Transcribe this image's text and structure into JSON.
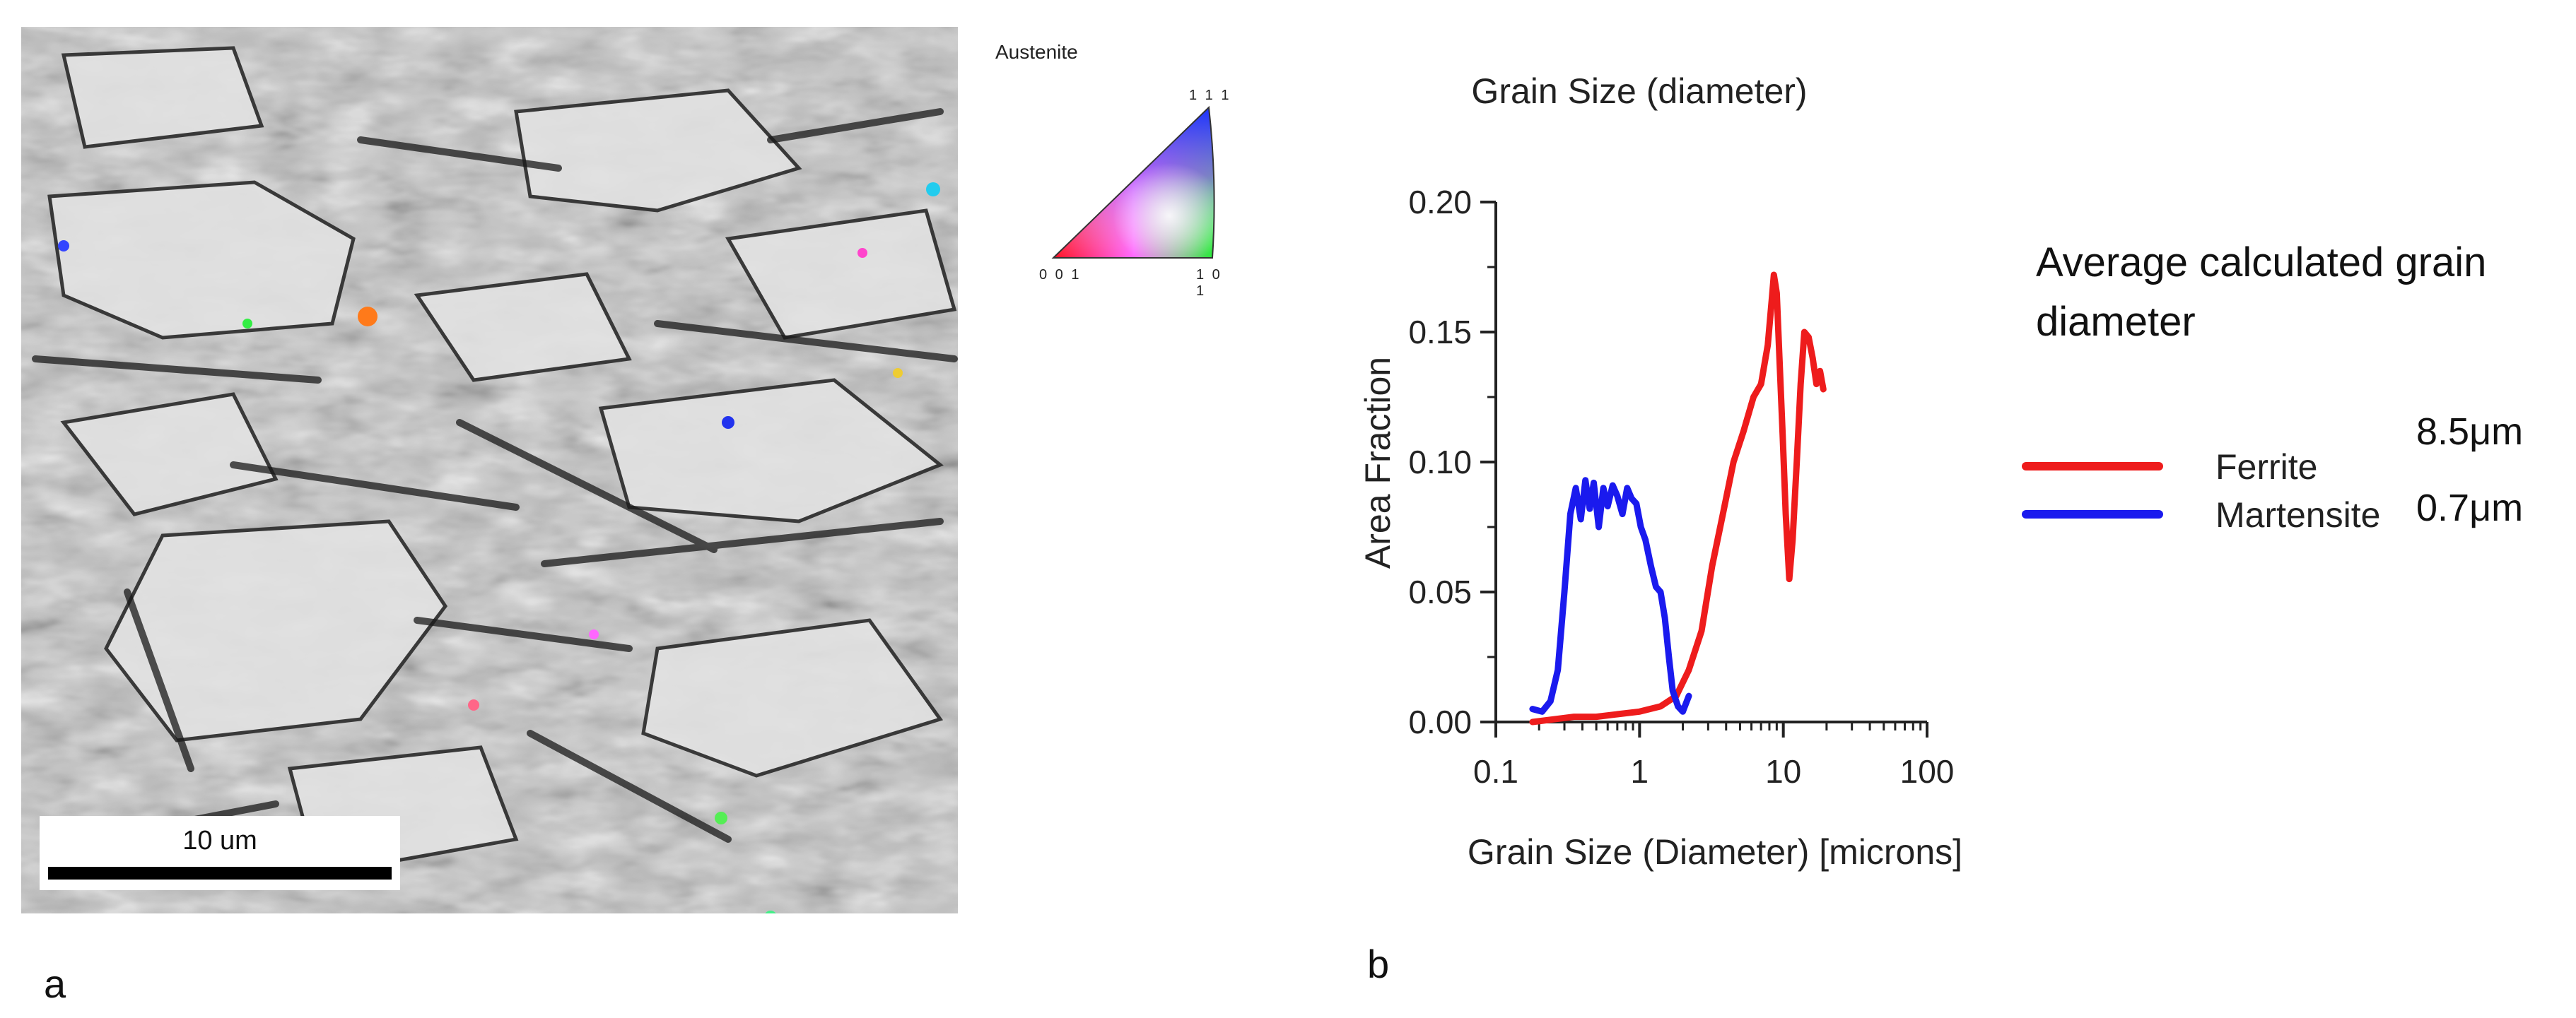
{
  "panel_a": {
    "label": "a",
    "scale_bar_label": "10 um",
    "ipf": {
      "title": "Austenite",
      "corner_top": "1 1 1",
      "corner_left": "0 0 1",
      "corner_right": "1 0 1"
    }
  },
  "panel_b": {
    "label": "b",
    "average_title": "Average calculated grain diameter",
    "legend": [
      {
        "name": "Ferrite",
        "color": "#ee1c1c",
        "average": "8.5μm"
      },
      {
        "name": "Martensite",
        "color": "#1a1aee",
        "average": "0.7μm"
      }
    ]
  },
  "chart_data": {
    "type": "line",
    "title": "Grain Size (diameter)",
    "xlabel": "Grain Size (Diameter) [microns]",
    "ylabel": "Area Fraction",
    "xscale": "log",
    "xlim": [
      0.1,
      100
    ],
    "ylim": [
      0,
      0.2
    ],
    "xticks": [
      "0.1",
      "1",
      "10",
      "100"
    ],
    "yticks": [
      "0.00",
      "0.05",
      "0.10",
      "0.15",
      "0.20"
    ],
    "series": [
      {
        "name": "Ferrite",
        "color": "#ee1c1c",
        "x": [
          0.18,
          0.25,
          0.35,
          0.5,
          0.7,
          1.0,
          1.4,
          1.8,
          2.2,
          2.7,
          3.2,
          3.8,
          4.5,
          5.3,
          6.2,
          7.0,
          7.8,
          8.3,
          8.6,
          9.0,
          9.4,
          9.9,
          10.4,
          11.0,
          11.6,
          12.4,
          13.2,
          14.0,
          15.0,
          16.0,
          17.0,
          18.0,
          19.0
        ],
        "y": [
          0.0,
          0.001,
          0.002,
          0.002,
          0.003,
          0.004,
          0.006,
          0.01,
          0.02,
          0.035,
          0.06,
          0.08,
          0.1,
          0.112,
          0.125,
          0.13,
          0.145,
          0.162,
          0.172,
          0.165,
          0.14,
          0.11,
          0.08,
          0.055,
          0.07,
          0.1,
          0.13,
          0.15,
          0.148,
          0.14,
          0.13,
          0.135,
          0.128
        ]
      },
      {
        "name": "Martensite",
        "color": "#1a1aee",
        "x": [
          0.18,
          0.21,
          0.24,
          0.27,
          0.3,
          0.33,
          0.36,
          0.39,
          0.42,
          0.45,
          0.48,
          0.52,
          0.56,
          0.6,
          0.65,
          0.7,
          0.76,
          0.82,
          0.88,
          0.95,
          1.02,
          1.1,
          1.2,
          1.3,
          1.4,
          1.5,
          1.6,
          1.7,
          1.85,
          2.0,
          2.2
        ],
        "y": [
          0.005,
          0.004,
          0.008,
          0.02,
          0.05,
          0.08,
          0.09,
          0.078,
          0.093,
          0.082,
          0.092,
          0.075,
          0.09,
          0.083,
          0.091,
          0.087,
          0.08,
          0.09,
          0.086,
          0.084,
          0.075,
          0.07,
          0.06,
          0.052,
          0.05,
          0.04,
          0.025,
          0.012,
          0.006,
          0.004,
          0.01
        ]
      }
    ]
  }
}
